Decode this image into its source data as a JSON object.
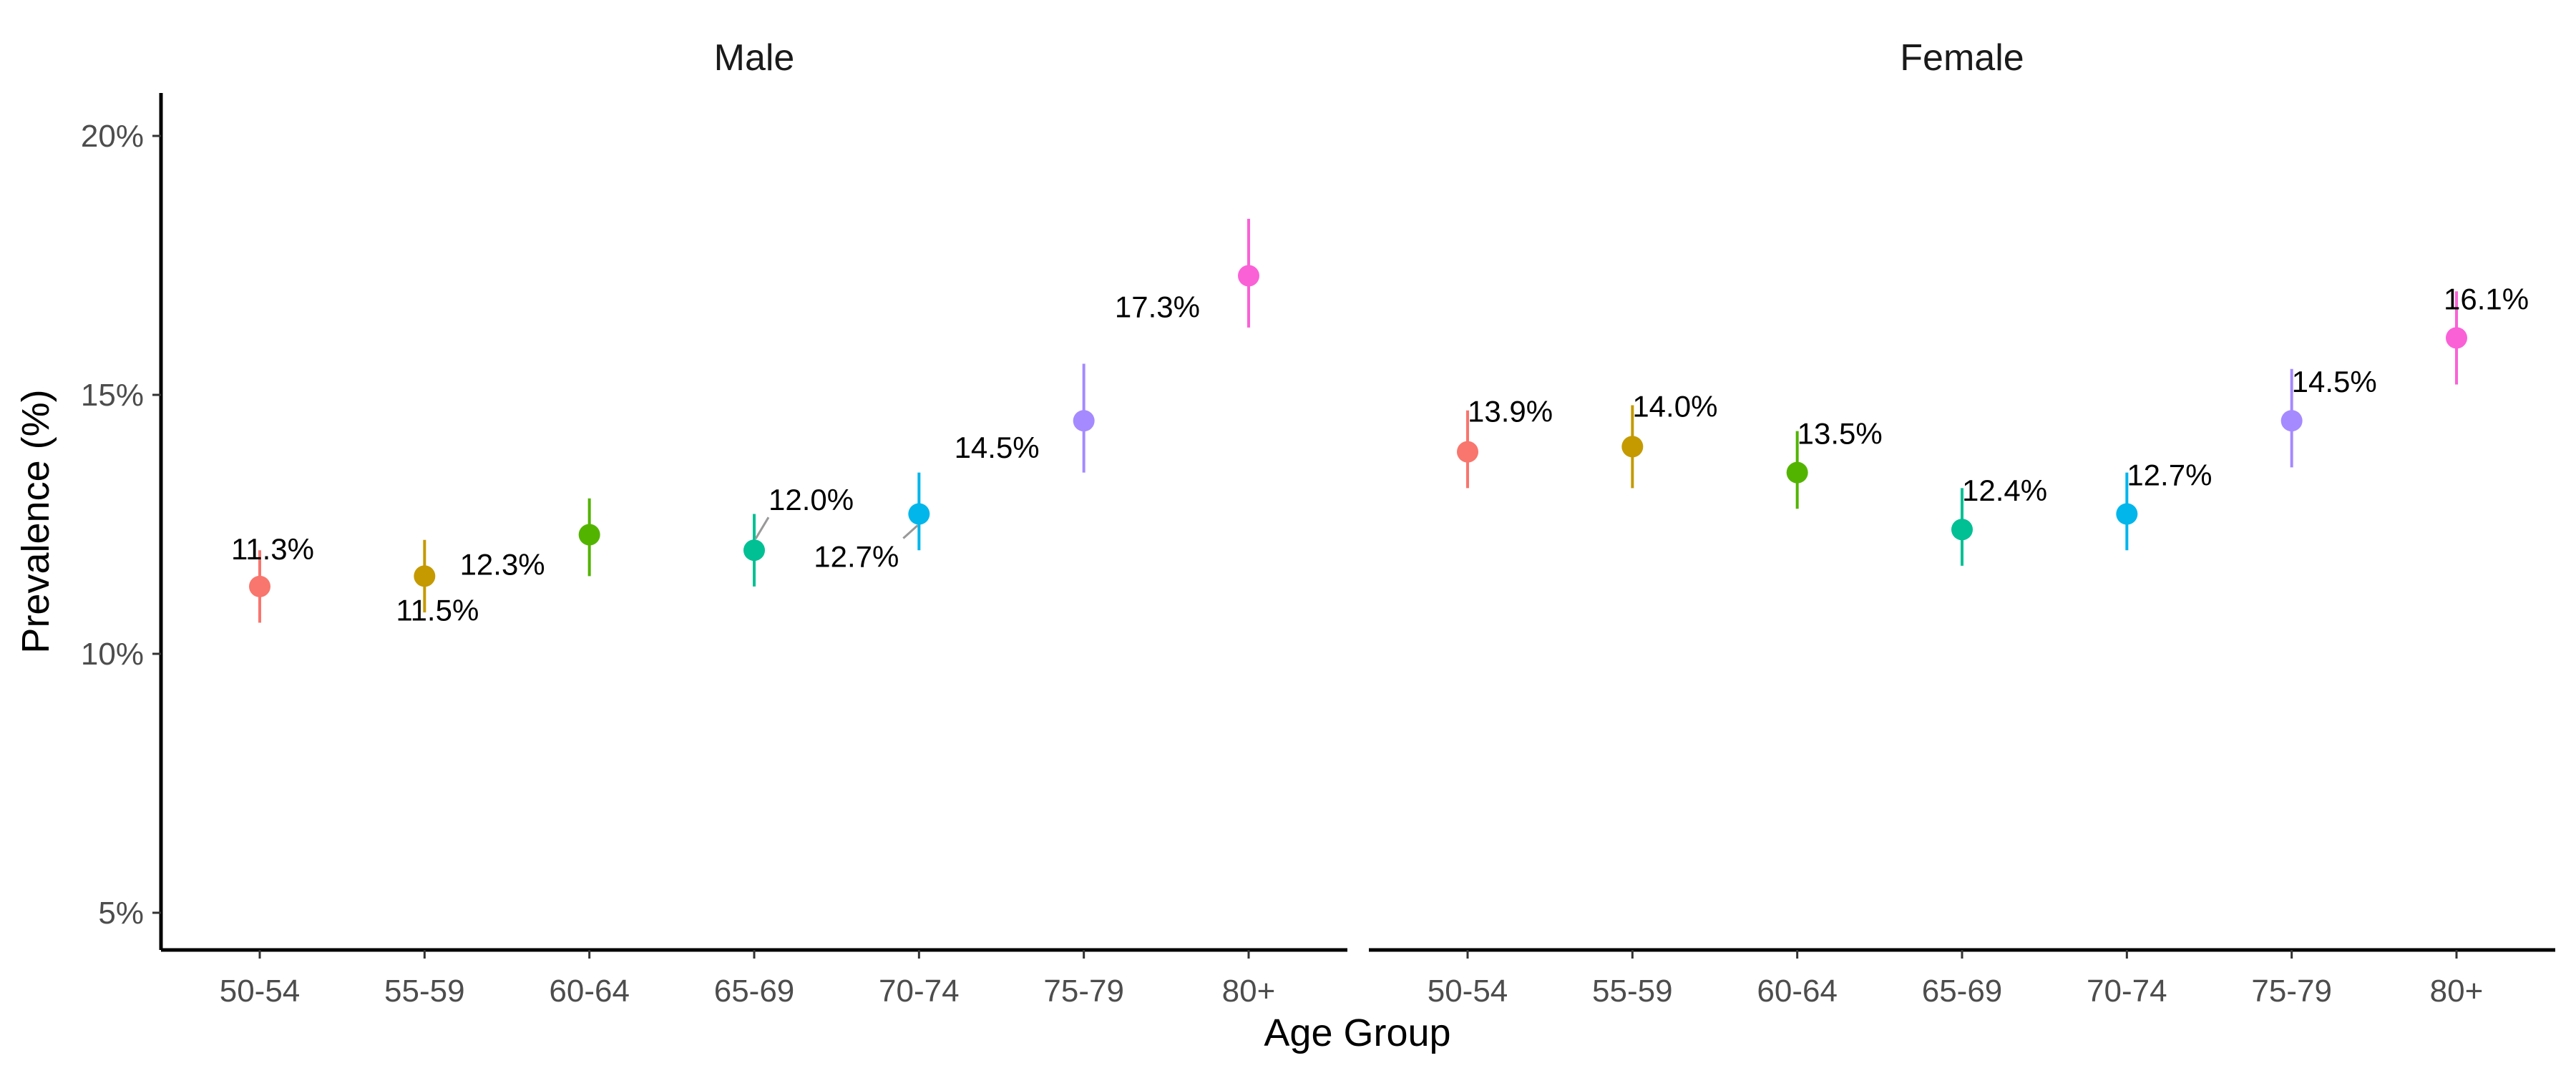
{
  "chart_data": {
    "type": "scatter",
    "xlabel": "Age Group",
    "ylabel": "Prevalence (%)",
    "ylim": [
      5,
      20
    ],
    "y_ticks": [
      "5%",
      "10%",
      "15%",
      "20%"
    ],
    "y_tick_values": [
      5,
      10,
      15,
      20
    ],
    "categories": [
      "50-54",
      "55-59",
      "60-64",
      "65-69",
      "70-74",
      "75-79",
      "80+"
    ],
    "colors": [
      "#F8766D",
      "#C49A00",
      "#53B400",
      "#00C094",
      "#00B6EB",
      "#A58AFF",
      "#FB61D7"
    ],
    "grid": false,
    "legend": "none",
    "panels": [
      {
        "title": "Male",
        "values": [
          11.3,
          11.5,
          12.3,
          12.0,
          12.7,
          14.5,
          17.3
        ],
        "lower": [
          10.6,
          10.8,
          11.5,
          11.3,
          12.0,
          13.5,
          16.3
        ],
        "upper": [
          12.0,
          12.2,
          13.0,
          12.7,
          13.5,
          15.6,
          18.4
        ],
        "labels": [
          "11.3%",
          "11.5%",
          "12.3%",
          "12.0%",
          "12.7%",
          "14.5%",
          "17.3%"
        ]
      },
      {
        "title": "Female",
        "values": [
          13.9,
          14.0,
          13.5,
          12.4,
          12.7,
          14.5,
          16.1
        ],
        "lower": [
          13.2,
          13.2,
          12.8,
          11.7,
          12.0,
          13.6,
          15.2
        ],
        "upper": [
          14.7,
          14.8,
          14.3,
          13.2,
          13.5,
          15.5,
          17.0
        ],
        "labels": [
          "13.9%",
          "14.0%",
          "13.5%",
          "12.4%",
          "12.7%",
          "14.5%",
          "16.1%"
        ]
      }
    ]
  }
}
